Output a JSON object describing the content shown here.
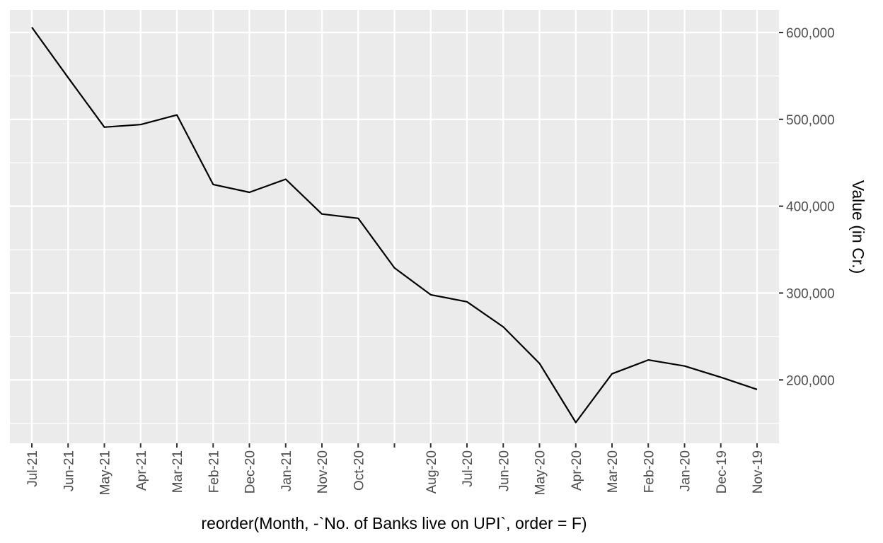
{
  "chart_data": {
    "type": "line",
    "categories": [
      "Jul-21",
      "Jun-21",
      "May-21",
      "Apr-21",
      "Mar-21",
      "Feb-21",
      "Dec-20",
      "Jan-21",
      "Nov-20",
      "Oct-20",
      "",
      "Aug-20",
      "Jul-20",
      "Jun-20",
      "May-20",
      "Apr-20",
      "Mar-20",
      "Feb-20",
      "Jan-20",
      "Dec-19",
      "Nov-19"
    ],
    "series": [
      {
        "values": [
          606000,
          548000,
          491000,
          494000,
          505000,
          425000,
          416000,
          431000,
          391000,
          386000,
          329000,
          298000,
          290000,
          261000,
          219000,
          151000,
          207000,
          223000,
          216000,
          203000,
          189000
        ]
      }
    ],
    "xlabel": "reorder(Month, -`No. of Banks live on UPI`, order = F)",
    "ylabel": "Value (in Cr.)",
    "ylim": [
      127000,
      626000
    ],
    "yticks": [
      200000,
      300000,
      400000,
      500000,
      600000
    ],
    "ytick_labels": [
      "200,000",
      "300,000",
      "400,000",
      "500,000",
      "600,000"
    ],
    "y_axis_position": "right",
    "grid": true,
    "line_color": "#000000",
    "panel_color": "#ebebeb",
    "grid_color": "#ffffff"
  }
}
